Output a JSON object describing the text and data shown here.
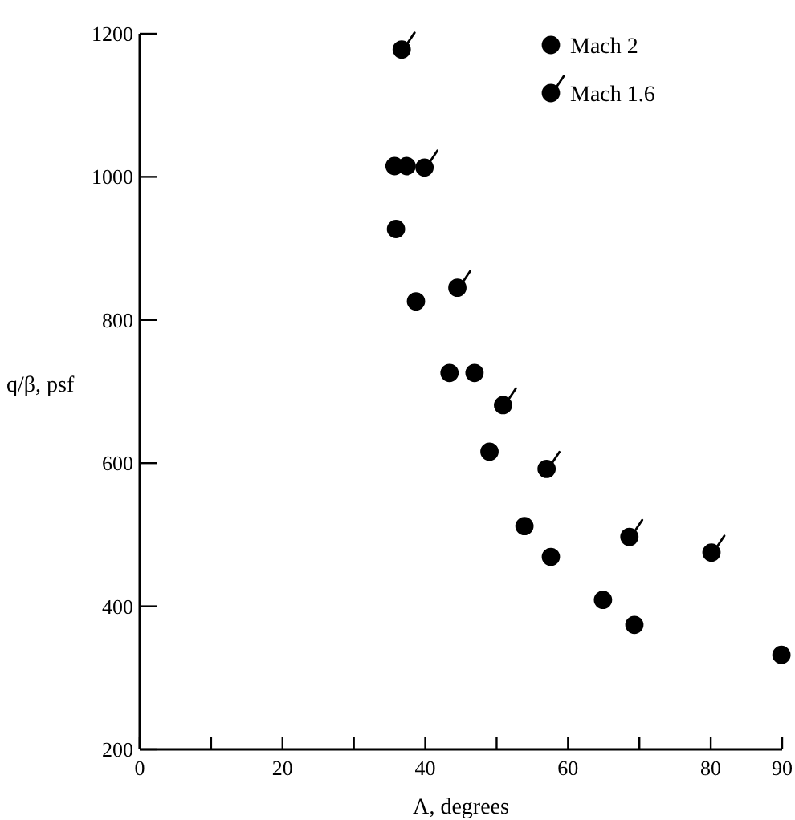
{
  "chart_data": {
    "type": "scatter",
    "xlabel": "Λ, degrees",
    "ylabel": "q/β, psf",
    "xlim": [
      0,
      90
    ],
    "xticks": [
      0,
      {
        "value": 10,
        "label": null
      },
      20,
      {
        "value": 30,
        "label": null
      },
      40,
      {
        "value": 50,
        "label": null
      },
      60,
      {
        "value": 70,
        "label": null
      },
      80,
      90
    ],
    "ylim": [
      200,
      1200
    ],
    "yticks": [
      200,
      400,
      600,
      800,
      1000,
      1200
    ],
    "grid": false,
    "legend": "top right",
    "marker": "circle",
    "series": [
      {
        "name": "Mach 2",
        "color": "#000000",
        "x": [
          35.7,
          37.4,
          35.9,
          38.7,
          43.4,
          46.9,
          49.0,
          53.9,
          57.6,
          64.9,
          69.3,
          89.9
        ],
        "values": [
          1015,
          1015,
          927,
          826,
          726,
          726,
          616,
          512,
          469,
          409,
          374,
          332
        ]
      },
      {
        "name": "Mach 1.6",
        "color": "#000000",
        "x": [
          36.7,
          39.9,
          44.5,
          50.9,
          57.0,
          68.6,
          80.1
        ],
        "values": [
          1178,
          1013,
          845,
          681,
          592,
          497,
          475
        ]
      }
    ]
  }
}
